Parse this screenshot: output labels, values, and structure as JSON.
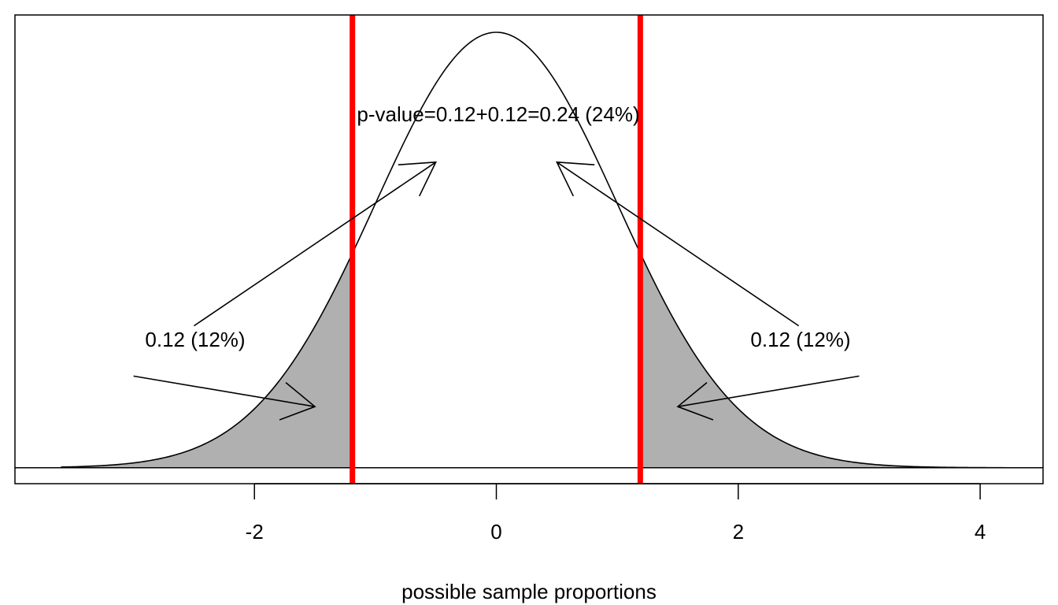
{
  "chart_data": {
    "type": "area",
    "distribution": "normal",
    "mean": 0,
    "sd": 1,
    "x_range": [
      -3.6,
      4.2
    ],
    "xlim": [
      -3.98,
      4.52
    ],
    "ylim": [
      -0.0146,
      0.4148
    ],
    "xlabel": "possible sample proportions",
    "x_ticks": [
      -2,
      0,
      2,
      4
    ],
    "x_tick_labels": [
      "-2",
      "0",
      "2",
      "4"
    ],
    "critical_values": [
      -1.19,
      1.19
    ],
    "critical_line_color": "#ff0000",
    "shade_color": "#b0b0b0",
    "y_axis_shown": false,
    "annotations": {
      "pvalue_text": "p-value=0.12+0.12=0.24 (24%)",
      "left_tail_text": "0.12 (12%)",
      "right_tail_text": "0.12 (12%)"
    },
    "arrows": [
      {
        "name": "left-tail-arrow",
        "from": [
          -3.0,
          0.084
        ],
        "to": [
          -1.5,
          0.056
        ]
      },
      {
        "name": "left-center-arrow",
        "from": [
          -2.5,
          0.13
        ],
        "to": [
          -0.5,
          0.28
        ]
      },
      {
        "name": "right-tail-arrow",
        "from": [
          3.0,
          0.084
        ],
        "to": [
          1.5,
          0.056
        ]
      },
      {
        "name": "right-center-arrow",
        "from": [
          2.5,
          0.13
        ],
        "to": [
          0.5,
          0.28
        ]
      }
    ]
  }
}
